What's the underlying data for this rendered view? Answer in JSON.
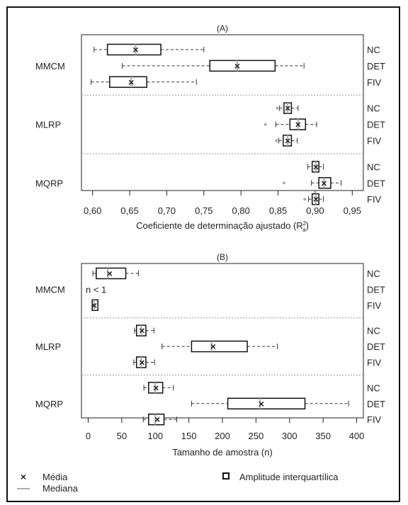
{
  "chart_data": [
    {
      "type": "boxplot",
      "title": "(A)",
      "xlabel": "Coeficiente de determinação ajustado (R",
      "xlabel_sup": "2",
      "xlabel_sub": "a",
      "xlabel_end": ")",
      "xlim": [
        0.585,
        0.965
      ],
      "xticks": [
        "0,60",
        "0,65",
        "0,70",
        "0,75",
        "0,80",
        "0,85",
        "0,90",
        "0,95"
      ],
      "xtick_values": [
        0.6,
        0.65,
        0.7,
        0.75,
        0.8,
        0.85,
        0.9,
        0.95
      ],
      "groups": [
        {
          "name": "MMCM",
          "rows": [
            {
              "label": "NC",
              "min": 0.602,
              "q1": 0.62,
              "median": 0.658,
              "q3": 0.692,
              "max": 0.75,
              "mean": 0.658,
              "outliers": []
            },
            {
              "label": "DET",
              "min": 0.64,
              "q1": 0.758,
              "median": 0.795,
              "q3": 0.846,
              "max": 0.885,
              "mean": 0.795,
              "outliers": []
            },
            {
              "label": "FIV",
              "min": 0.598,
              "q1": 0.623,
              "median": 0.652,
              "q3": 0.673,
              "max": 0.74,
              "mean": 0.652,
              "outliers": []
            }
          ]
        },
        {
          "name": "MLRP",
          "rows": [
            {
              "label": "NC",
              "min": 0.852,
              "q1": 0.858,
              "median": 0.863,
              "q3": 0.868,
              "max": 0.877,
              "mean": 0.863,
              "outliers": [
                0.849
              ]
            },
            {
              "label": "DET",
              "min": 0.847,
              "q1": 0.866,
              "median": 0.877,
              "q3": 0.887,
              "max": 0.902,
              "mean": 0.877,
              "outliers": [
                0.833
              ]
            },
            {
              "label": "FIV",
              "min": 0.851,
              "q1": 0.857,
              "median": 0.863,
              "q3": 0.868,
              "max": 0.876,
              "mean": 0.863,
              "outliers": [
                0.848
              ]
            }
          ]
        },
        {
          "name": "MQRP",
          "rows": [
            {
              "label": "NC",
              "min": 0.89,
              "q1": 0.896,
              "median": 0.901,
              "q3": 0.905,
              "max": 0.911,
              "mean": 0.901,
              "outliers": []
            },
            {
              "label": "DET",
              "min": 0.895,
              "q1": 0.905,
              "median": 0.912,
              "q3": 0.921,
              "max": 0.935,
              "mean": 0.912,
              "outliers": [
                0.858
              ]
            },
            {
              "label": "FIV",
              "min": 0.891,
              "q1": 0.896,
              "median": 0.901,
              "q3": 0.905,
              "max": 0.911,
              "mean": 0.901,
              "outliers": [
                0.886
              ]
            }
          ]
        }
      ]
    },
    {
      "type": "boxplot",
      "title": "(B)",
      "xlabel": "Tamanho de amostra (n)",
      "xlim": [
        -10,
        410
      ],
      "xticks": [
        "0",
        "50",
        "100",
        "150",
        "200",
        "250",
        "300",
        "350",
        "400"
      ],
      "xtick_values": [
        0,
        50,
        100,
        150,
        200,
        250,
        300,
        350,
        400
      ],
      "groups": [
        {
          "name": "MMCM",
          "rows": [
            {
              "label": "NC",
              "min": 7,
              "q1": 12,
              "median": 29,
              "q3": 56,
              "max": 75,
              "mean": 32,
              "outliers": []
            },
            {
              "label": "DET",
              "annotation": "n < 1"
            },
            {
              "label": "FIV",
              "min": 6,
              "q1": 6,
              "median": 9,
              "q3": 12,
              "max": 12,
              "mean": 9,
              "outliers": []
            }
          ]
        },
        {
          "name": "MLRP",
          "rows": [
            {
              "label": "NC",
              "min": 69,
              "q1": 72,
              "median": 79,
              "q3": 86,
              "max": 98,
              "mean": 80,
              "outliers": []
            },
            {
              "label": "DET",
              "min": 110,
              "q1": 154,
              "median": 184,
              "q3": 237,
              "max": 282,
              "mean": 186,
              "outliers": []
            },
            {
              "label": "FIV",
              "min": 68,
              "q1": 72,
              "median": 79,
              "q3": 86,
              "max": 99,
              "mean": 80,
              "outliers": []
            }
          ]
        },
        {
          "name": "MQRP",
          "rows": [
            {
              "label": "NC",
              "min": 83,
              "q1": 90,
              "median": 100,
              "q3": 111,
              "max": 127,
              "mean": 101,
              "outliers": []
            },
            {
              "label": "DET",
              "min": 154,
              "q1": 208,
              "median": 256,
              "q3": 323,
              "max": 388,
              "mean": 258,
              "outliers": []
            },
            {
              "label": "FIV",
              "min": 82,
              "q1": 90,
              "median": 100,
              "q3": 113,
              "max": 132,
              "mean": 103,
              "outliers": []
            }
          ]
        }
      ]
    }
  ],
  "legend": {
    "mean_label": "Média",
    "median_label": "Mediana",
    "iqr_label": "Amplitude interquartílica"
  }
}
